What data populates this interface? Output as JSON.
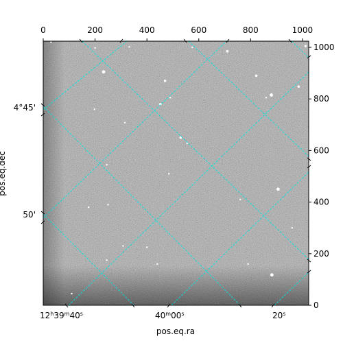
{
  "image": {
    "kind": "astronomical-image",
    "colormap": "grayscale",
    "grid_color": "#00e5e5",
    "stars": [
      {
        "x": 233,
        "y": 905,
        "r": 4
      },
      {
        "x": 1012,
        "y": 1005,
        "r": 3
      },
      {
        "x": 332,
        "y": 1002,
        "r": 2
      },
      {
        "x": 200,
        "y": 998,
        "r": 2
      },
      {
        "x": 470,
        "y": 870,
        "r": 3
      },
      {
        "x": 575,
        "y": 1000,
        "r": 2
      },
      {
        "x": 710,
        "y": 985,
        "r": 3
      },
      {
        "x": 822,
        "y": 890,
        "r": 3
      },
      {
        "x": 860,
        "y": 805,
        "r": 2
      },
      {
        "x": 880,
        "y": 815,
        "r": 4
      },
      {
        "x": 985,
        "y": 848,
        "r": 3
      },
      {
        "x": 452,
        "y": 780,
        "r": 3
      },
      {
        "x": 490,
        "y": 805,
        "r": 2
      },
      {
        "x": 198,
        "y": 760,
        "r": 2
      },
      {
        "x": 315,
        "y": 708,
        "r": 2
      },
      {
        "x": 530,
        "y": 650,
        "r": 3
      },
      {
        "x": 555,
        "y": 628,
        "r": 2
      },
      {
        "x": 245,
        "y": 545,
        "r": 2
      },
      {
        "x": 485,
        "y": 510,
        "r": 2
      },
      {
        "x": 906,
        "y": 450,
        "r": 4
      },
      {
        "x": 760,
        "y": 410,
        "r": 2
      },
      {
        "x": 250,
        "y": 390,
        "r": 2
      },
      {
        "x": 175,
        "y": 380,
        "r": 2
      },
      {
        "x": 308,
        "y": 230,
        "r": 2
      },
      {
        "x": 400,
        "y": 225,
        "r": 2
      },
      {
        "x": 245,
        "y": 175,
        "r": 2
      },
      {
        "x": 440,
        "y": 160,
        "r": 2
      },
      {
        "x": 790,
        "y": 160,
        "r": 2
      },
      {
        "x": 882,
        "y": 118,
        "r": 4
      },
      {
        "x": 110,
        "y": 45,
        "r": 2
      },
      {
        "x": 30,
        "y": 1020,
        "r": 2
      },
      {
        "x": 960,
        "y": 300,
        "r": 2
      }
    ]
  },
  "axes": {
    "xlabel": "pos.eq.ra",
    "ylabel": "pos.eq.dec",
    "pixel_x_ticks": [
      {
        "value": 0,
        "label": "0"
      },
      {
        "value": 200,
        "label": "200"
      },
      {
        "value": 400,
        "label": "400"
      },
      {
        "value": 600,
        "label": "600"
      },
      {
        "value": 800,
        "label": "800"
      },
      {
        "value": 1000,
        "label": "1000"
      }
    ],
    "pixel_y_ticks": [
      {
        "value": 0,
        "label": "0"
      },
      {
        "value": 200,
        "label": "200"
      },
      {
        "value": 400,
        "label": "400"
      },
      {
        "value": 600,
        "label": "600"
      },
      {
        "value": 800,
        "label": "800"
      },
      {
        "value": 1000,
        "label": "1000"
      }
    ],
    "pixel_xlim": [
      0,
      1024
    ],
    "pixel_ylim": [
      0,
      1024
    ],
    "ra_ticks": [
      {
        "label_parts": [
          "12",
          "h",
          "39",
          "m",
          "40",
          "s"
        ]
      },
      {
        "label_parts": [
          "40",
          "m",
          "00",
          "s"
        ]
      },
      {
        "label_parts": [
          "20",
          "s"
        ]
      }
    ],
    "dec_ticks": [
      {
        "label": "4°45'"
      },
      {
        "label": "50'"
      }
    ]
  }
}
